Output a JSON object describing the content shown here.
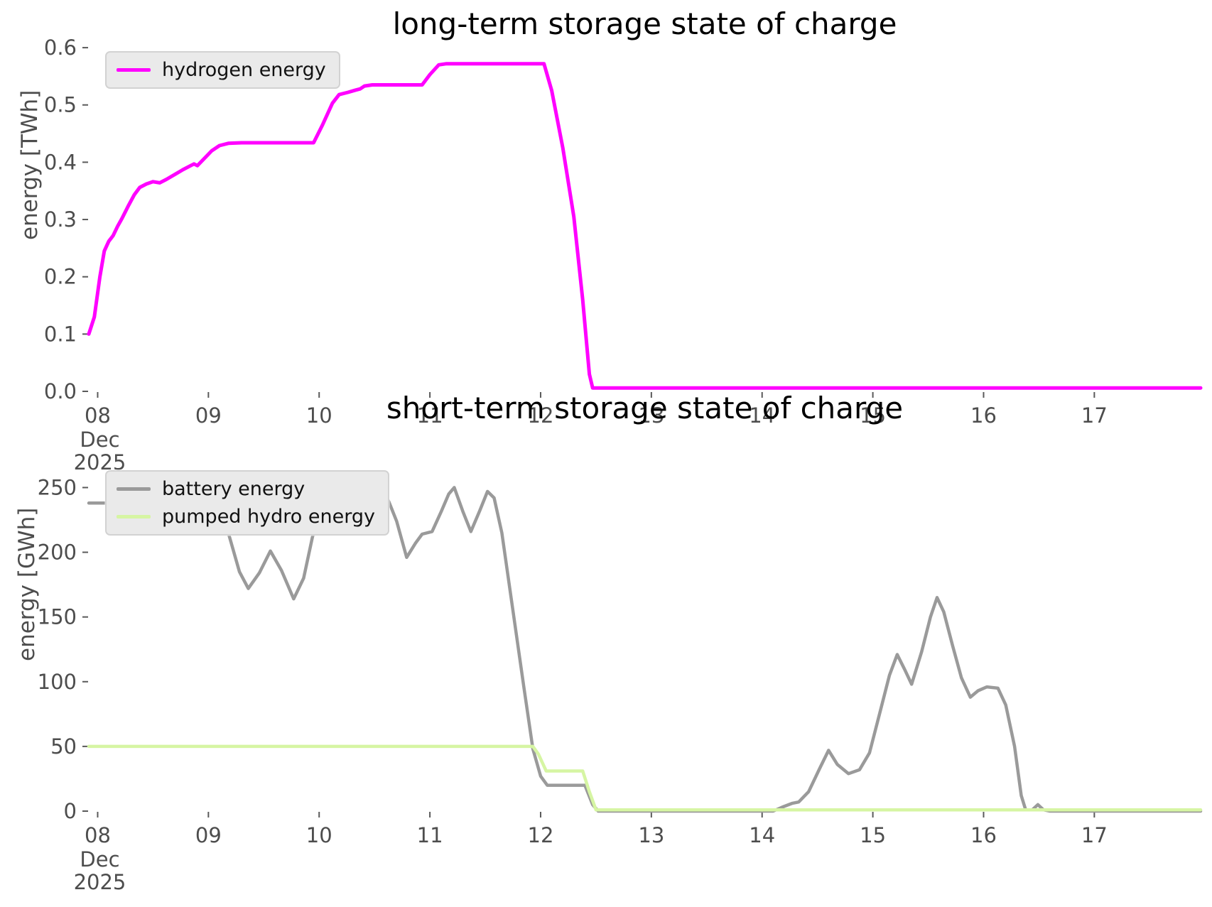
{
  "colors": {
    "hydrogen": "#ff00ff",
    "battery": "#9a9a9a",
    "pumped_hydro": "#d6f5a3",
    "tick_text": "#4d4d4d",
    "tick_mark": "#5a5a5a",
    "title_text": "#000000",
    "legend_bg": "#eaeaea",
    "legend_border": "#d2d2d2"
  },
  "chart_data": [
    {
      "type": "line",
      "title": "long-term storage state of charge",
      "ylabel": "energy [TWh]",
      "xlabel": "",
      "legend_position": "upper left",
      "grid": false,
      "xlim": [
        7.92,
        17.96
      ],
      "ylim": [
        0,
        0.615
      ],
      "x_axis_unit": "day of Dec 2025",
      "x_ticks": [
        {
          "day": 8,
          "label": "08",
          "sub": [
            "Dec",
            "2025"
          ]
        },
        {
          "day": 9,
          "label": "09"
        },
        {
          "day": 10,
          "label": "10"
        },
        {
          "day": 11,
          "label": "11"
        },
        {
          "day": 12,
          "label": "12"
        },
        {
          "day": 13,
          "label": "13"
        },
        {
          "day": 14,
          "label": "14"
        },
        {
          "day": 15,
          "label": "15"
        },
        {
          "day": 16,
          "label": "16"
        },
        {
          "day": 17,
          "label": "17"
        }
      ],
      "y_ticks": [
        {
          "value": 0.0,
          "label": "0.0"
        },
        {
          "value": 0.1,
          "label": "0.1"
        },
        {
          "value": 0.2,
          "label": "0.2"
        },
        {
          "value": 0.3,
          "label": "0.3"
        },
        {
          "value": 0.4,
          "label": "0.4"
        },
        {
          "value": 0.5,
          "label": "0.5"
        },
        {
          "value": 0.6,
          "label": "0.6"
        }
      ],
      "series": [
        {
          "name": "hydrogen energy",
          "color": "#ff00ff",
          "line_width": 5,
          "points": [
            [
              7.92,
              0.1
            ],
            [
              7.97,
              0.13
            ],
            [
              8.02,
              0.2
            ],
            [
              8.06,
              0.245
            ],
            [
              8.1,
              0.262
            ],
            [
              8.14,
              0.272
            ],
            [
              8.18,
              0.288
            ],
            [
              8.22,
              0.302
            ],
            [
              8.28,
              0.325
            ],
            [
              8.33,
              0.343
            ],
            [
              8.38,
              0.356
            ],
            [
              8.44,
              0.362
            ],
            [
              8.5,
              0.366
            ],
            [
              8.56,
              0.364
            ],
            [
              8.62,
              0.37
            ],
            [
              8.7,
              0.379
            ],
            [
              8.77,
              0.387
            ],
            [
              8.84,
              0.394
            ],
            [
              8.87,
              0.397
            ],
            [
              8.9,
              0.394
            ],
            [
              8.96,
              0.406
            ],
            [
              9.03,
              0.42
            ],
            [
              9.1,
              0.429
            ],
            [
              9.18,
              0.433
            ],
            [
              9.3,
              0.434
            ],
            [
              9.95,
              0.434
            ],
            [
              10.03,
              0.465
            ],
            [
              10.12,
              0.503
            ],
            [
              10.18,
              0.518
            ],
            [
              10.26,
              0.522
            ],
            [
              10.33,
              0.526
            ],
            [
              10.37,
              0.528
            ],
            [
              10.41,
              0.533
            ],
            [
              10.48,
              0.535
            ],
            [
              10.93,
              0.535
            ],
            [
              11.0,
              0.553
            ],
            [
              11.08,
              0.57
            ],
            [
              11.15,
              0.572
            ],
            [
              12.03,
              0.572
            ],
            [
              12.1,
              0.525
            ],
            [
              12.2,
              0.425
            ],
            [
              12.3,
              0.305
            ],
            [
              12.38,
              0.16
            ],
            [
              12.44,
              0.03
            ],
            [
              12.47,
              0.006
            ],
            [
              17.96,
              0.006
            ]
          ]
        }
      ]
    },
    {
      "type": "line",
      "title": "short-term storage state of charge",
      "ylabel": "energy [GWh]",
      "xlabel": "",
      "legend_position": "upper left",
      "grid": false,
      "xlim": [
        7.92,
        17.96
      ],
      "ylim": [
        0,
        270
      ],
      "x_axis_unit": "day of Dec 2025",
      "x_ticks": [
        {
          "day": 8,
          "label": "08",
          "sub": [
            "Dec",
            "2025"
          ]
        },
        {
          "day": 9,
          "label": "09"
        },
        {
          "day": 10,
          "label": "10"
        },
        {
          "day": 11,
          "label": "11"
        },
        {
          "day": 12,
          "label": "12"
        },
        {
          "day": 13,
          "label": "13"
        },
        {
          "day": 14,
          "label": "14"
        },
        {
          "day": 15,
          "label": "15"
        },
        {
          "day": 16,
          "label": "16"
        },
        {
          "day": 17,
          "label": "17"
        }
      ],
      "y_ticks": [
        {
          "value": 0,
          "label": "0"
        },
        {
          "value": 50,
          "label": "50"
        },
        {
          "value": 100,
          "label": "100"
        },
        {
          "value": 150,
          "label": "150"
        },
        {
          "value": 200,
          "label": "200"
        },
        {
          "value": 250,
          "label": "250"
        }
      ],
      "series": [
        {
          "name": "battery energy",
          "color": "#9a9a9a",
          "line_width": 4.5,
          "points": [
            [
              7.92,
              238
            ],
            [
              8.4,
              238
            ],
            [
              8.55,
              241
            ],
            [
              8.7,
              245
            ],
            [
              8.85,
              252
            ],
            [
              8.95,
              255
            ],
            [
              9.03,
              247
            ],
            [
              9.1,
              236
            ],
            [
              9.18,
              215
            ],
            [
              9.28,
              185
            ],
            [
              9.36,
              172
            ],
            [
              9.46,
              184
            ],
            [
              9.56,
              201
            ],
            [
              9.66,
              186
            ],
            [
              9.77,
              164
            ],
            [
              9.86,
              180
            ],
            [
              9.94,
              212
            ],
            [
              10.02,
              236
            ],
            [
              10.08,
              240
            ],
            [
              10.13,
              231
            ],
            [
              10.18,
              225
            ],
            [
              10.24,
              229
            ],
            [
              10.29,
              224
            ],
            [
              10.33,
              218
            ],
            [
              10.38,
              224
            ],
            [
              10.43,
              230
            ],
            [
              10.5,
              242
            ],
            [
              10.56,
              250
            ],
            [
              10.63,
              239
            ],
            [
              10.7,
              224
            ],
            [
              10.79,
              196
            ],
            [
              10.87,
              207
            ],
            [
              10.93,
              214
            ],
            [
              11.02,
              216
            ],
            [
              11.1,
              231
            ],
            [
              11.17,
              245
            ],
            [
              11.22,
              250
            ],
            [
              11.3,
              231
            ],
            [
              11.37,
              216
            ],
            [
              11.45,
              232
            ],
            [
              11.52,
              247
            ],
            [
              11.58,
              242
            ],
            [
              11.65,
              215
            ],
            [
              11.75,
              155
            ],
            [
              11.85,
              95
            ],
            [
              11.93,
              48
            ],
            [
              12.0,
              27
            ],
            [
              12.06,
              20
            ],
            [
              12.4,
              20
            ],
            [
              12.47,
              5
            ],
            [
              12.52,
              0
            ],
            [
              14.1,
              0
            ],
            [
              14.18,
              3
            ],
            [
              14.27,
              6
            ],
            [
              14.33,
              7
            ],
            [
              14.42,
              15
            ],
            [
              14.52,
              33
            ],
            [
              14.6,
              47
            ],
            [
              14.68,
              36
            ],
            [
              14.78,
              29
            ],
            [
              14.88,
              32
            ],
            [
              14.97,
              45
            ],
            [
              15.06,
              75
            ],
            [
              15.15,
              105
            ],
            [
              15.22,
              121
            ],
            [
              15.29,
              109
            ],
            [
              15.35,
              98
            ],
            [
              15.44,
              123
            ],
            [
              15.52,
              150
            ],
            [
              15.58,
              165
            ],
            [
              15.64,
              154
            ],
            [
              15.72,
              128
            ],
            [
              15.8,
              103
            ],
            [
              15.88,
              88
            ],
            [
              15.95,
              93
            ],
            [
              16.03,
              96
            ],
            [
              16.13,
              95
            ],
            [
              16.2,
              82
            ],
            [
              16.28,
              50
            ],
            [
              16.34,
              12
            ],
            [
              16.38,
              1
            ],
            [
              16.44,
              1
            ],
            [
              16.49,
              5
            ],
            [
              16.54,
              1
            ],
            [
              16.6,
              0
            ],
            [
              17.96,
              0
            ]
          ]
        },
        {
          "name": "pumped hydro energy",
          "color": "#d6f5a3",
          "line_width": 4.5,
          "points": [
            [
              7.92,
              50
            ],
            [
              11.93,
              50
            ],
            [
              11.98,
              44
            ],
            [
              12.05,
              31
            ],
            [
              12.38,
              31
            ],
            [
              12.44,
              15
            ],
            [
              12.5,
              1
            ],
            [
              17.96,
              1
            ]
          ]
        }
      ]
    }
  ]
}
